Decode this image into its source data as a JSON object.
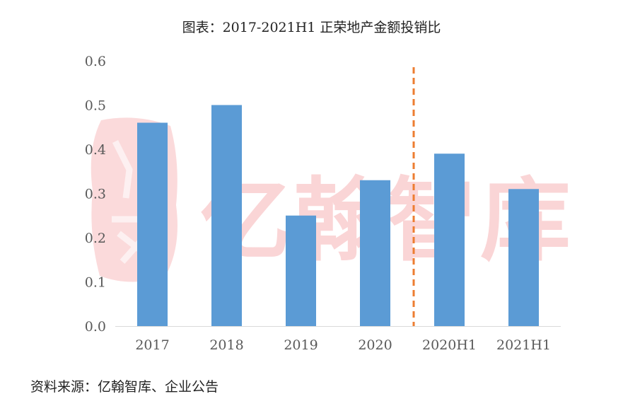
{
  "title": "图表：2017-2021H1 正荣地产金额投销比",
  "source": "资料来源：亿翰智库、企业公告",
  "watermark": "亿翰智库",
  "colors": {
    "bar": "#5b9bd5",
    "divider": "#ed7d31",
    "axis": "#d9d9d9",
    "tick_text": "#595959",
    "watermark": "#e7333a"
  },
  "chart_data": {
    "type": "bar",
    "categories": [
      "2017",
      "2018",
      "2019",
      "2020",
      "2020H1",
      "2021H1"
    ],
    "values": [
      0.46,
      0.5,
      0.25,
      0.33,
      0.39,
      0.31
    ],
    "ylim": [
      0,
      0.6
    ],
    "yticks": [
      "0.0",
      "0.1",
      "0.2",
      "0.3",
      "0.4",
      "0.5",
      "0.6"
    ],
    "grid": false,
    "xlabel": "",
    "ylabel": "",
    "divider_between": [
      "2020",
      "2020H1"
    ]
  }
}
